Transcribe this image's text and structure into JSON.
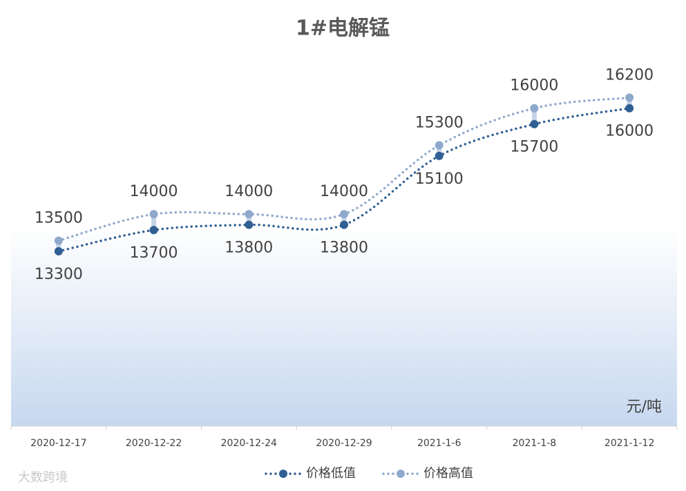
{
  "chart_data": {
    "type": "line",
    "title": "1#电解锰",
    "unit_label": "元/吨",
    "watermark": "大数跨境",
    "categories": [
      "2020-12-17",
      "2020-12-22",
      "2020-12-24",
      "2020-12-29",
      "2021-1-6",
      "2021-1-8",
      "2021-1-12"
    ],
    "series": [
      {
        "name": "价格低值",
        "color": "#2f5f93",
        "values": [
          13300,
          13700,
          13800,
          13800,
          15100,
          15700,
          16000
        ]
      },
      {
        "name": "价格高值",
        "color": "#8fa9cc",
        "values": [
          13500,
          14000,
          14000,
          14000,
          15300,
          16000,
          16200
        ]
      }
    ],
    "ylim": [
      10000,
      17000
    ],
    "legend": "bottom"
  }
}
